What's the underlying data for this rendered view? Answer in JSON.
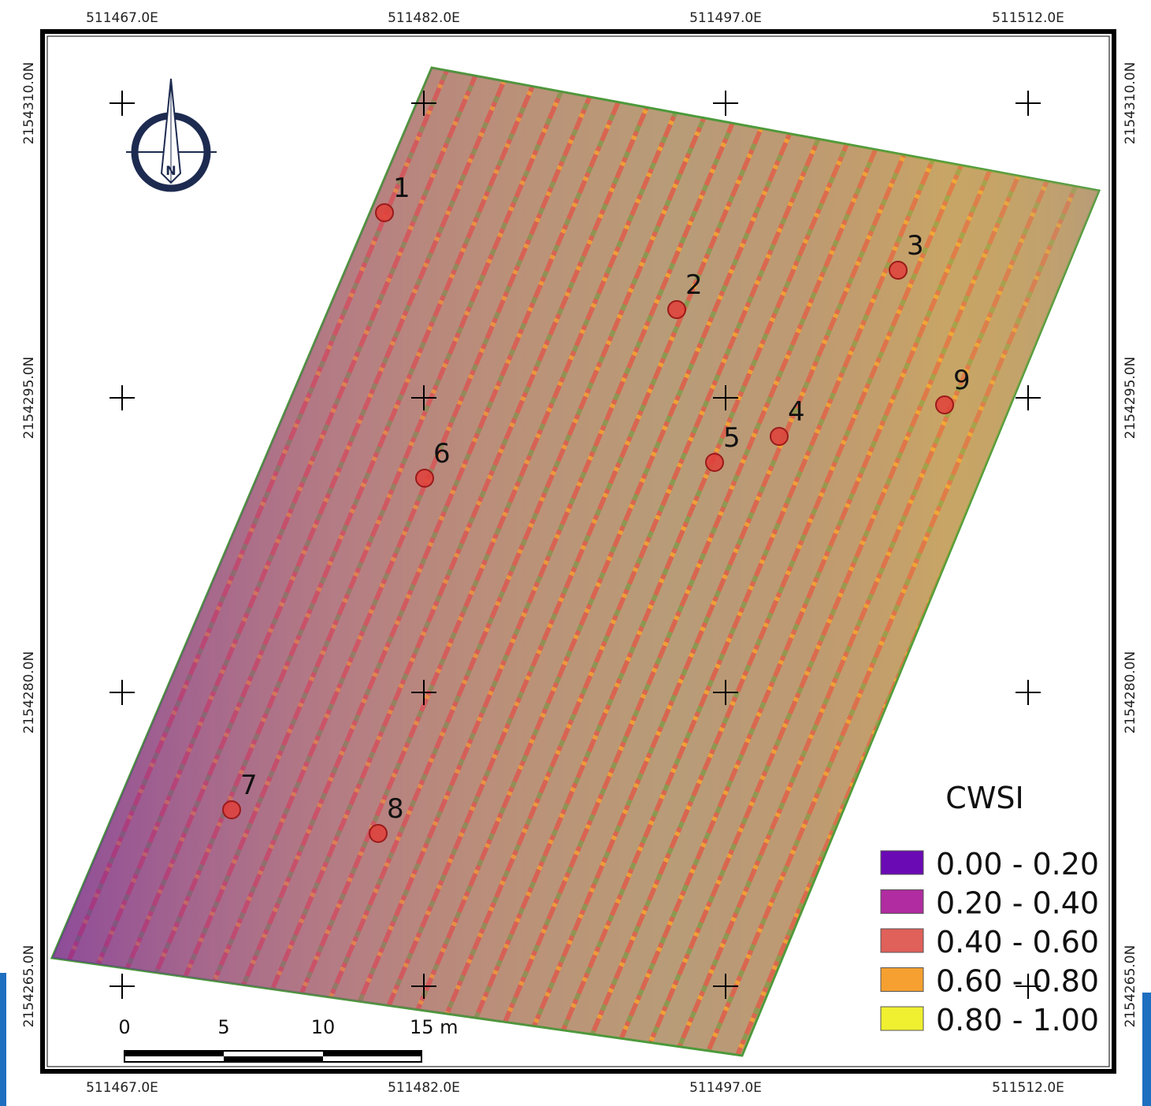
{
  "grid": {
    "x_labels": [
      "511467.0E",
      "511482.0E",
      "511497.0E",
      "511512.0E"
    ],
    "y_labels": [
      "2154310.0N",
      "2154295.0N",
      "2154280.0N",
      "2154265.0N"
    ]
  },
  "points": [
    "1",
    "2",
    "3",
    "4",
    "5",
    "6",
    "7",
    "8",
    "9"
  ],
  "legend": {
    "title": "CWSI",
    "classes": [
      {
        "label": "0.00 - 0.20",
        "color": "#6a0ab4"
      },
      {
        "label": "0.20 - 0.40",
        "color": "#b02ca0"
      },
      {
        "label": "0.40 - 0.60",
        "color": "#e0605a"
      },
      {
        "label": "0.60 - 0.80",
        "color": "#f5a030"
      },
      {
        "label": "0.80 - 1.00",
        "color": "#f0f030"
      }
    ]
  },
  "scale_bar": {
    "labels": [
      "0",
      "5",
      "10",
      "15 m"
    ]
  }
}
